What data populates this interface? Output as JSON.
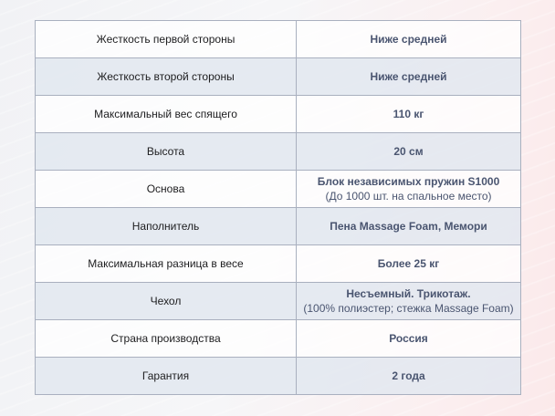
{
  "rows": [
    {
      "label": "Жесткость первой стороны",
      "value": "Ниже средней",
      "note": ""
    },
    {
      "label": "Жесткость второй стороны",
      "value": "Ниже средней",
      "note": ""
    },
    {
      "label": "Максимальный вес спящего",
      "value": "110 кг",
      "note": ""
    },
    {
      "label": "Высота",
      "value": "20 см",
      "note": ""
    },
    {
      "label": "Основа",
      "value": "Блок независимых пружин S1000",
      "note": "(До 1000 шт. на спальное место)"
    },
    {
      "label": "Наполнитель",
      "value": "Пена Massage Foam, Мемори",
      "note": ""
    },
    {
      "label": "Максимальная разница в весе",
      "value": "Более 25 кг",
      "note": ""
    },
    {
      "label": "Чехол",
      "value": "Несъемный. Трикотаж.",
      "note": "(100% полиэстер; стежка Massage Foam)"
    },
    {
      "label": "Страна производства",
      "value": "Россия",
      "note": ""
    },
    {
      "label": "Гарантия",
      "value": "2 года",
      "note": ""
    }
  ]
}
